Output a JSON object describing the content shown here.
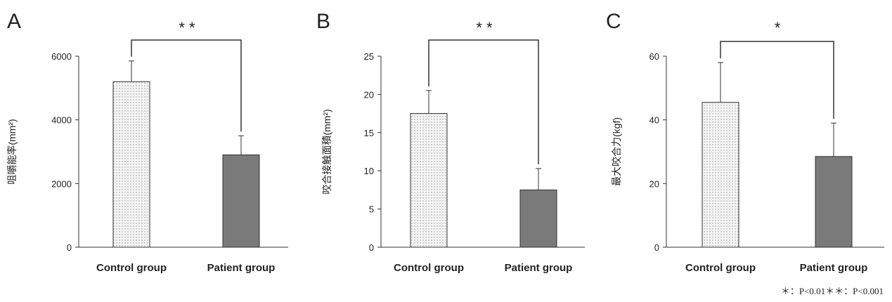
{
  "colors": {
    "control_fill": "#f4f4f4",
    "control_dots": "#9a9a9a",
    "patient_fill": "#7a7a7a",
    "line": "#333333"
  },
  "chart_data": [
    {
      "type": "bar",
      "panel_label": "A",
      "ylabel": "咀嚼能率(mm²)",
      "categories": [
        "Control group",
        "Patient group"
      ],
      "values": [
        5200,
        2900
      ],
      "errors": [
        650,
        600
      ],
      "ylim": [
        0,
        6000
      ],
      "yticks": [
        0,
        2000,
        4000,
        6000
      ],
      "significance": "* *"
    },
    {
      "type": "bar",
      "panel_label": "B",
      "ylabel": "咬合接触面積(mm²)",
      "categories": [
        "Control group",
        "Patient group"
      ],
      "values": [
        17.5,
        7.5
      ],
      "errors": [
        3.0,
        2.8
      ],
      "ylim": [
        0,
        25
      ],
      "yticks": [
        0,
        5,
        10,
        15,
        20,
        25
      ],
      "significance": "* *"
    },
    {
      "type": "bar",
      "panel_label": "C",
      "ylabel": "最大咬合力(kgf)",
      "categories": [
        "Control group",
        "Patient group"
      ],
      "values": [
        45.5,
        28.5
      ],
      "errors": [
        12.5,
        10.5
      ],
      "ylim": [
        0,
        60
      ],
      "yticks": [
        0,
        20,
        40,
        60
      ],
      "significance": "*"
    }
  ],
  "footnote": "＊：P<0.01＊＊：P<0.001"
}
